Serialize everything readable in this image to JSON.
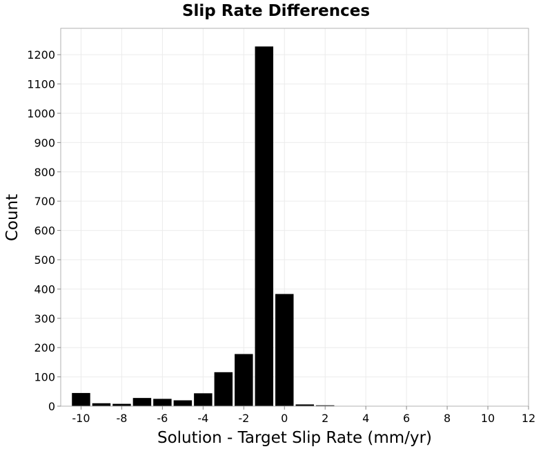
{
  "chart_data": {
    "type": "bar",
    "title": "Slip Rate Differences",
    "xlabel": "Solution - Target Slip Rate (mm/yr)",
    "ylabel": "Count",
    "xlim": [
      -11,
      12
    ],
    "ylim": [
      0,
      1290
    ],
    "xticks": [
      "-10",
      "-8",
      "-6",
      "-4",
      "-2",
      "0",
      "2",
      "4",
      "6",
      "8",
      "10",
      "12"
    ],
    "yticks": [
      "0",
      "100",
      "200",
      "300",
      "400",
      "500",
      "600",
      "700",
      "800",
      "900",
      "1000",
      "1100",
      "1200"
    ],
    "bin_width": 1,
    "bins": [
      {
        "x": -10,
        "count": 45
      },
      {
        "x": -9,
        "count": 10
      },
      {
        "x": -8,
        "count": 8
      },
      {
        "x": -7,
        "count": 28
      },
      {
        "x": -6,
        "count": 25
      },
      {
        "x": -5,
        "count": 20
      },
      {
        "x": -4,
        "count": 44
      },
      {
        "x": -3,
        "count": 116
      },
      {
        "x": -2,
        "count": 178
      },
      {
        "x": -1,
        "count": 1228
      },
      {
        "x": 0,
        "count": 383
      },
      {
        "x": 1,
        "count": 6
      },
      {
        "x": 2,
        "count": 3
      }
    ],
    "grid": true,
    "bar_color": "#000000"
  }
}
